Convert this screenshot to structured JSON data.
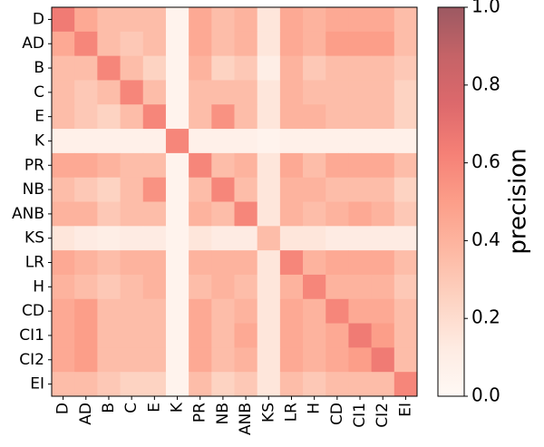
{
  "chart_data": {
    "type": "heatmap",
    "x_categories": [
      "D",
      "AD",
      "B",
      "C",
      "E",
      "K",
      "PR",
      "NB",
      "ANB",
      "KS",
      "LR",
      "H",
      "CD",
      "CI1",
      "CI2",
      "EI"
    ],
    "y_categories": [
      "D",
      "AD",
      "B",
      "C",
      "E",
      "K",
      "PR",
      "NB",
      "ANB",
      "KS",
      "LR",
      "H",
      "CD",
      "CI1",
      "CI2",
      "EI"
    ],
    "values": [
      [
        0.65,
        0.45,
        0.35,
        0.35,
        0.35,
        0.05,
        0.45,
        0.35,
        0.4,
        0.15,
        0.45,
        0.4,
        0.45,
        0.45,
        0.45,
        0.35
      ],
      [
        0.45,
        0.6,
        0.35,
        0.3,
        0.35,
        0.05,
        0.45,
        0.35,
        0.4,
        0.15,
        0.45,
        0.4,
        0.5,
        0.5,
        0.5,
        0.35
      ],
      [
        0.35,
        0.35,
        0.6,
        0.35,
        0.25,
        0.05,
        0.4,
        0.25,
        0.3,
        0.1,
        0.4,
        0.3,
        0.35,
        0.35,
        0.35,
        0.3
      ],
      [
        0.35,
        0.3,
        0.35,
        0.6,
        0.35,
        0.05,
        0.35,
        0.35,
        0.35,
        0.15,
        0.4,
        0.35,
        0.35,
        0.35,
        0.35,
        0.25
      ],
      [
        0.35,
        0.3,
        0.25,
        0.35,
        0.6,
        0.05,
        0.35,
        0.55,
        0.35,
        0.15,
        0.4,
        0.4,
        0.35,
        0.35,
        0.35,
        0.25
      ],
      [
        0.08,
        0.08,
        0.08,
        0.08,
        0.08,
        0.6,
        0.08,
        0.08,
        0.08,
        0.05,
        0.08,
        0.08,
        0.08,
        0.08,
        0.08,
        0.08
      ],
      [
        0.45,
        0.45,
        0.4,
        0.35,
        0.35,
        0.05,
        0.6,
        0.35,
        0.4,
        0.15,
        0.45,
        0.35,
        0.45,
        0.45,
        0.45,
        0.35
      ],
      [
        0.35,
        0.3,
        0.25,
        0.35,
        0.55,
        0.05,
        0.35,
        0.6,
        0.35,
        0.15,
        0.4,
        0.4,
        0.35,
        0.35,
        0.35,
        0.25
      ],
      [
        0.4,
        0.4,
        0.3,
        0.35,
        0.35,
        0.05,
        0.4,
        0.35,
        0.6,
        0.15,
        0.4,
        0.35,
        0.4,
        0.45,
        0.4,
        0.3
      ],
      [
        0.15,
        0.12,
        0.1,
        0.12,
        0.12,
        0.05,
        0.15,
        0.12,
        0.12,
        0.35,
        0.15,
        0.15,
        0.12,
        0.12,
        0.12,
        0.12
      ],
      [
        0.45,
        0.4,
        0.35,
        0.4,
        0.4,
        0.05,
        0.4,
        0.4,
        0.4,
        0.15,
        0.6,
        0.4,
        0.45,
        0.45,
        0.45,
        0.35
      ],
      [
        0.4,
        0.35,
        0.3,
        0.35,
        0.4,
        0.05,
        0.35,
        0.4,
        0.35,
        0.15,
        0.4,
        0.6,
        0.4,
        0.4,
        0.4,
        0.3
      ],
      [
        0.45,
        0.5,
        0.35,
        0.35,
        0.35,
        0.05,
        0.45,
        0.35,
        0.4,
        0.15,
        0.45,
        0.4,
        0.6,
        0.45,
        0.45,
        0.35
      ],
      [
        0.45,
        0.5,
        0.35,
        0.35,
        0.35,
        0.05,
        0.45,
        0.35,
        0.45,
        0.15,
        0.45,
        0.4,
        0.45,
        0.65,
        0.5,
        0.35
      ],
      [
        0.45,
        0.5,
        0.35,
        0.35,
        0.35,
        0.05,
        0.45,
        0.35,
        0.4,
        0.15,
        0.45,
        0.4,
        0.45,
        0.5,
        0.65,
        0.35
      ],
      [
        0.35,
        0.35,
        0.3,
        0.25,
        0.25,
        0.05,
        0.35,
        0.25,
        0.3,
        0.15,
        0.35,
        0.3,
        0.35,
        0.35,
        0.35,
        0.6
      ]
    ],
    "colormap": "Reds",
    "alpha": 0.65,
    "colorbar_label": "precision",
    "clim": [
      0,
      1
    ],
    "cticks": [
      {
        "value": 0,
        "label": "0.0"
      },
      0.2,
      0.4,
      0.6,
      0.8,
      {
        "value": 1,
        "label": "1.0"
      }
    ]
  }
}
